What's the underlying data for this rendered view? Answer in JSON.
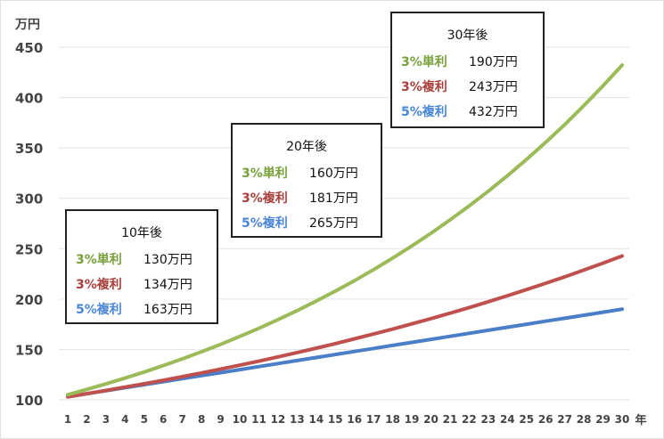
{
  "chart_data": {
    "type": "line",
    "ylabel": "万円",
    "xlabel": "年",
    "ylim": [
      100,
      450
    ],
    "yticks": [
      100,
      150,
      200,
      250,
      300,
      350,
      400,
      450
    ],
    "x": [
      1,
      2,
      3,
      4,
      5,
      6,
      7,
      8,
      9,
      10,
      11,
      12,
      13,
      14,
      15,
      16,
      17,
      18,
      19,
      20,
      21,
      22,
      23,
      24,
      25,
      26,
      27,
      28,
      29,
      30
    ],
    "grid": "horizontal",
    "series": [
      {
        "name": "3%単利",
        "color": "#4a7ec8",
        "values": [
          103,
          106,
          109,
          112,
          115,
          118,
          121,
          124,
          127,
          130,
          133,
          136,
          139,
          142,
          145,
          148,
          151,
          154,
          157,
          160,
          163,
          166,
          169,
          172,
          175,
          178,
          181,
          184,
          187,
          190
        ]
      },
      {
        "name": "3%複利",
        "color": "#c0504d",
        "values": [
          103.0,
          106.1,
          109.3,
          112.6,
          115.9,
          119.4,
          123.0,
          126.7,
          130.5,
          134.4,
          138.4,
          142.6,
          146.9,
          151.3,
          155.8,
          160.5,
          165.3,
          170.2,
          175.4,
          180.6,
          186.0,
          191.6,
          197.4,
          203.3,
          209.4,
          215.7,
          222.1,
          228.8,
          235.7,
          242.7
        ]
      },
      {
        "name": "5%複利",
        "color": "#9bbb59",
        "values": [
          105.0,
          110.3,
          115.8,
          121.6,
          127.6,
          134.0,
          140.7,
          147.7,
          155.1,
          162.9,
          171.0,
          179.6,
          188.6,
          198.0,
          207.9,
          218.3,
          229.2,
          240.7,
          252.7,
          265.3,
          278.6,
          292.5,
          307.1,
          322.5,
          338.6,
          355.5,
          373.3,
          392.0,
          411.6,
          432.2
        ]
      }
    ],
    "annotations": [
      {
        "title": "10年後",
        "rows": [
          {
            "label": "3%単利",
            "value": "130万円",
            "color": "#77a03a"
          },
          {
            "label": "3%複利",
            "value": "134万円",
            "color": "#a8403c"
          },
          {
            "label": "5%複利",
            "value": "163万円",
            "color": "#4a86d8"
          }
        ]
      },
      {
        "title": "20年後",
        "rows": [
          {
            "label": "3%単利",
            "value": "160万円",
            "color": "#77a03a"
          },
          {
            "label": "3%複利",
            "value": "181万円",
            "color": "#a8403c"
          },
          {
            "label": "5%複利",
            "value": "265万円",
            "color": "#4a86d8"
          }
        ]
      },
      {
        "title": "30年後",
        "rows": [
          {
            "label": "3%単利",
            "value": "190万円",
            "color": "#77a03a"
          },
          {
            "label": "3%複利",
            "value": "243万円",
            "color": "#a8403c"
          },
          {
            "label": "5%複利",
            "value": "432万円",
            "color": "#4a86d8"
          }
        ]
      }
    ]
  }
}
